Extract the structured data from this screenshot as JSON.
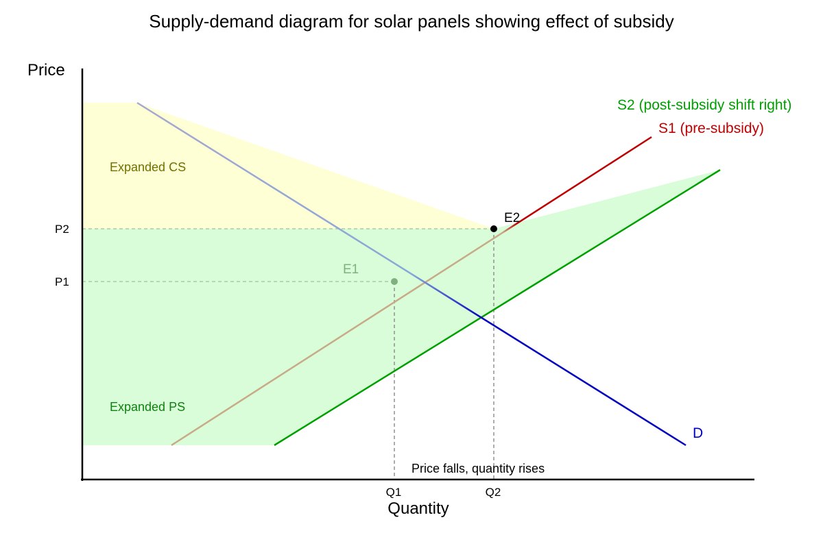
{
  "title": "Supply-demand diagram for solar panels showing effect of subsidy",
  "axes": {
    "y_label": "Price",
    "x_label": "Quantity"
  },
  "ticks": {
    "p1": "P1",
    "p2": "P2",
    "q1": "Q1",
    "q2": "Q2"
  },
  "curves": {
    "demand": {
      "label": "D",
      "color": "#0000c0"
    },
    "s1": {
      "label": "S1 (pre-subsidy)",
      "color": "#c00000"
    },
    "s2": {
      "label": "S2 (post-subsidy shift right)",
      "color": "#00a000"
    }
  },
  "areas": {
    "cs": {
      "label": "Expanded CS",
      "color": "#ffffd6",
      "text_color": "#707000"
    },
    "ps": {
      "label": "Expanded PS",
      "color": "#d8fdd8",
      "text_color": "#108010"
    }
  },
  "points": {
    "e1": {
      "label": "E1",
      "color": "#80b080"
    },
    "e2": {
      "label": "E2",
      "color": "#000000"
    }
  },
  "annotation": "Price falls, quantity rises"
}
